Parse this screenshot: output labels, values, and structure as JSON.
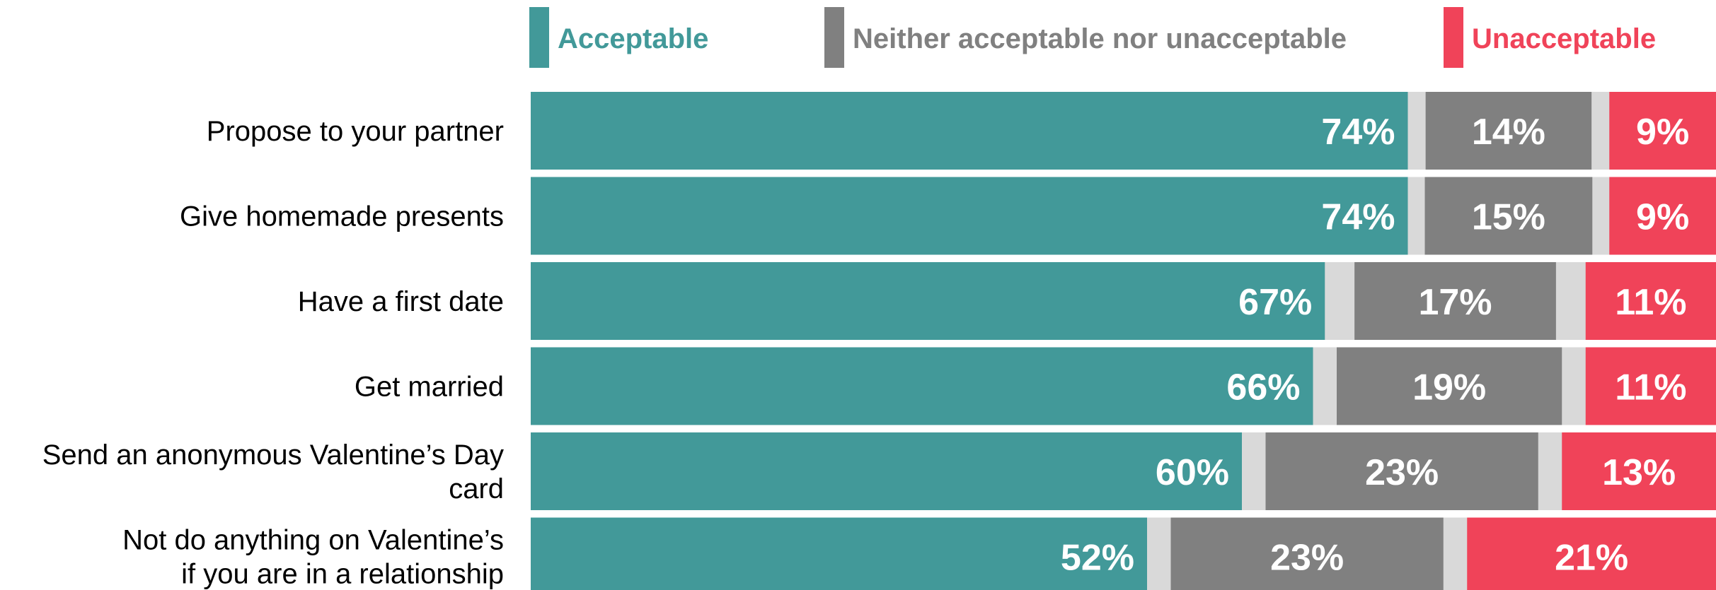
{
  "chart_data": {
    "type": "bar",
    "orientation": "horizontal",
    "stacked": true,
    "title": "",
    "xlabel": "",
    "ylabel": "",
    "xlim": [
      0,
      100
    ],
    "grid": false,
    "legend": "top",
    "categories": [
      [
        "Propose to your partner"
      ],
      [
        "Give homemade presents"
      ],
      [
        "Have a first date"
      ],
      [
        "Get married"
      ],
      [
        "Send an anonymous Valentine’s Day",
        "card"
      ],
      [
        "Not do anything on Valentine’s",
        "if you are in a relationship"
      ]
    ],
    "series": [
      {
        "name": "Acceptable",
        "color": "#429999",
        "values": [
          74,
          74,
          67,
          66,
          60,
          52
        ],
        "labels": [
          "74%",
          "74%",
          "67%",
          "66%",
          "60%",
          "52%"
        ]
      },
      {
        "name": "Neither acceptable nor unacceptable",
        "color": "#808080",
        "values": [
          14,
          15,
          17,
          19,
          23,
          23
        ],
        "labels": [
          "14%",
          "15%",
          "17%",
          "19%",
          "23%",
          "23%"
        ]
      },
      {
        "name": "Unacceptable",
        "color": "#f04359",
        "values": [
          9,
          9,
          11,
          11,
          13,
          21
        ],
        "labels": [
          "9%",
          "9%",
          "11%",
          "11%",
          "13%",
          "21%"
        ]
      }
    ],
    "remainder_color": "#d9d9d9",
    "legend_text_colors": [
      "#429999",
      "#808080",
      "#f04359"
    ]
  }
}
